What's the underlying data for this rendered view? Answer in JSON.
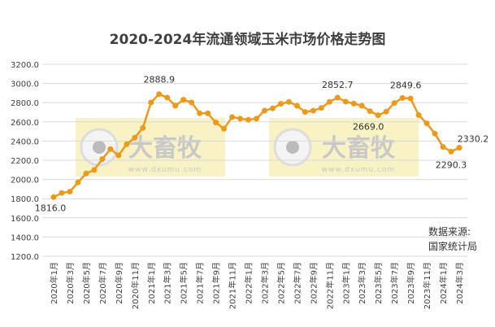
{
  "chart_data": {
    "type": "line",
    "title": "2020-2024年流通领域玉米市场价格走势图",
    "xlabel": "",
    "ylabel": "",
    "ylim": [
      1200,
      3200
    ],
    "y_ticks": [
      "3200.0",
      "3000.0",
      "2800.0",
      "2600.0",
      "2400.0",
      "2200.0",
      "2000.0",
      "1800.0",
      "1600.0",
      "1400.0",
      "1200.0"
    ],
    "grid": true,
    "x_tick_labels": [
      "2020年1月",
      "2020年3月",
      "2020年5月",
      "2020年7月",
      "2020年9月",
      "2020年11月",
      "2021年1月",
      "2021年3月",
      "2021年5月",
      "2021年7月",
      "2021年9月",
      "2021年11月",
      "2022年1月",
      "2022年3月",
      "2022年5月",
      "2022年7月",
      "2022年9月",
      "2022年11月",
      "2023年1月",
      "2023年3月",
      "2023年5月",
      "2023年7月",
      "2023年9月",
      "2023年11月",
      "2024年1月",
      "2024年3月"
    ],
    "series": [
      {
        "color": "#ED9A1A",
        "values": [
          1816.0,
          1859,
          1873,
          1969,
          2062,
          2099,
          2212,
          2317,
          2251,
          2367,
          2435,
          2537,
          2802,
          2888.9,
          2853,
          2768,
          2830,
          2802,
          2689,
          2689,
          2593,
          2528,
          2650,
          2633,
          2622,
          2633,
          2717,
          2740,
          2788,
          2808,
          2768,
          2703,
          2717,
          2745,
          2808,
          2852.7,
          2810,
          2790,
          2768,
          2711,
          2669.0,
          2706,
          2796,
          2849.6,
          2843,
          2670,
          2584,
          2477,
          2339,
          2290.3,
          2330.2
        ]
      }
    ],
    "data_labels": [
      {
        "index": 0,
        "text": "1816.0"
      },
      {
        "index": 13,
        "text": "2888.9"
      },
      {
        "index": 35,
        "text": "2852.7"
      },
      {
        "index": 40,
        "text": "2669.0"
      },
      {
        "index": 43,
        "text": "2849.6"
      },
      {
        "index": 49,
        "text": "2290.3"
      },
      {
        "index": 50,
        "text": "2330.2"
      }
    ]
  },
  "source": {
    "line1": "数据来源:",
    "line2": "国家统计局"
  },
  "watermark": {
    "brand": "大畜牧",
    "url": "www.dxumu.com"
  }
}
